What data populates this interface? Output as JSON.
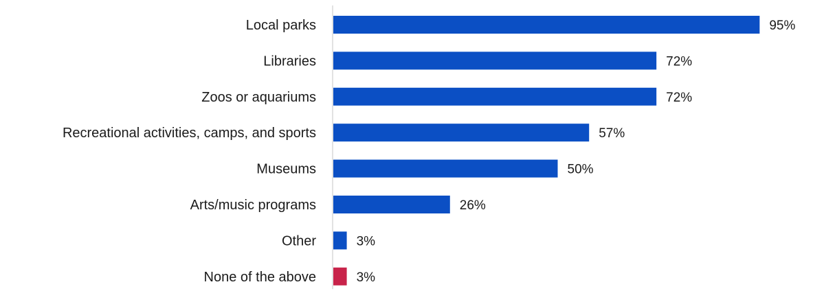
{
  "chart_data": {
    "type": "bar",
    "orientation": "horizontal",
    "title": "",
    "xlabel": "",
    "ylabel": "",
    "categories": [
      "Local parks",
      "Libraries",
      "Zoos or aquariums",
      "Recreational activities, camps, and sports",
      "Museums",
      "Arts/music programs",
      "Other",
      "None of the above"
    ],
    "values": [
      95,
      72,
      72,
      57,
      50,
      26,
      3,
      3
    ],
    "value_labels": [
      "95%",
      "72%",
      "72%",
      "57%",
      "50%",
      "26%",
      "3%",
      "3%"
    ],
    "unit": "%",
    "xlim": [
      0,
      100
    ],
    "grid": false,
    "legend": "none",
    "colors": {
      "primary_bar": "#0b4fc4",
      "highlight_bar": "#c8234a",
      "axis_line": "#d9d9d9",
      "text": "#1a1a1a"
    },
    "highlight_categories": [
      "None of the above"
    ]
  }
}
